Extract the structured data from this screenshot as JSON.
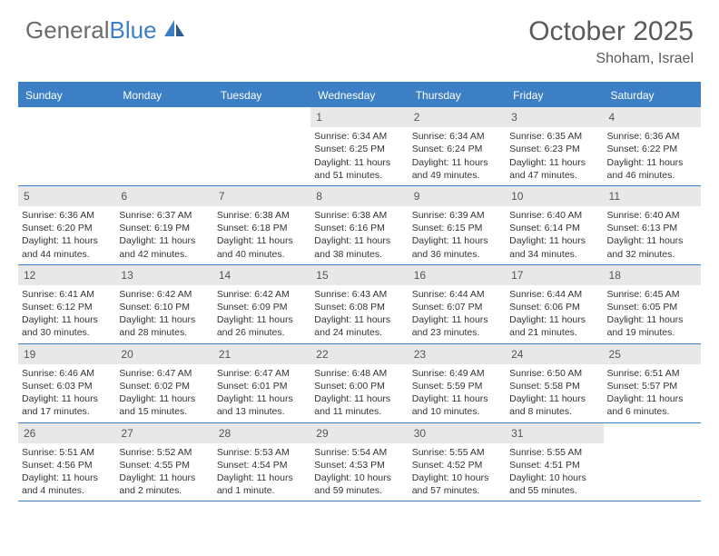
{
  "logo": {
    "word1": "General",
    "word2": "Blue"
  },
  "title": "October 2025",
  "location": "Shoham, Israel",
  "colors": {
    "brand_blue": "#3d7fc4",
    "header_text": "#5a5a5a",
    "logo_gray": "#6b6b6b",
    "daynum_bg": "#e8e8e8",
    "body_text": "#333333",
    "white": "#ffffff"
  },
  "typography": {
    "title_fontsize": 30,
    "location_fontsize": 16,
    "dayheader_fontsize": 12,
    "daynum_fontsize": 12,
    "cell_fontsize": 10.5
  },
  "day_names": [
    "Sunday",
    "Monday",
    "Tuesday",
    "Wednesday",
    "Thursday",
    "Friday",
    "Saturday"
  ],
  "weeks": [
    [
      {
        "empty": true
      },
      {
        "empty": true
      },
      {
        "empty": true
      },
      {
        "num": "1",
        "sunrise": "Sunrise: 6:34 AM",
        "sunset": "Sunset: 6:25 PM",
        "day1": "Daylight: 11 hours",
        "day2": "and 51 minutes."
      },
      {
        "num": "2",
        "sunrise": "Sunrise: 6:34 AM",
        "sunset": "Sunset: 6:24 PM",
        "day1": "Daylight: 11 hours",
        "day2": "and 49 minutes."
      },
      {
        "num": "3",
        "sunrise": "Sunrise: 6:35 AM",
        "sunset": "Sunset: 6:23 PM",
        "day1": "Daylight: 11 hours",
        "day2": "and 47 minutes."
      },
      {
        "num": "4",
        "sunrise": "Sunrise: 6:36 AM",
        "sunset": "Sunset: 6:22 PM",
        "day1": "Daylight: 11 hours",
        "day2": "and 46 minutes."
      }
    ],
    [
      {
        "num": "5",
        "sunrise": "Sunrise: 6:36 AM",
        "sunset": "Sunset: 6:20 PM",
        "day1": "Daylight: 11 hours",
        "day2": "and 44 minutes."
      },
      {
        "num": "6",
        "sunrise": "Sunrise: 6:37 AM",
        "sunset": "Sunset: 6:19 PM",
        "day1": "Daylight: 11 hours",
        "day2": "and 42 minutes."
      },
      {
        "num": "7",
        "sunrise": "Sunrise: 6:38 AM",
        "sunset": "Sunset: 6:18 PM",
        "day1": "Daylight: 11 hours",
        "day2": "and 40 minutes."
      },
      {
        "num": "8",
        "sunrise": "Sunrise: 6:38 AM",
        "sunset": "Sunset: 6:16 PM",
        "day1": "Daylight: 11 hours",
        "day2": "and 38 minutes."
      },
      {
        "num": "9",
        "sunrise": "Sunrise: 6:39 AM",
        "sunset": "Sunset: 6:15 PM",
        "day1": "Daylight: 11 hours",
        "day2": "and 36 minutes."
      },
      {
        "num": "10",
        "sunrise": "Sunrise: 6:40 AM",
        "sunset": "Sunset: 6:14 PM",
        "day1": "Daylight: 11 hours",
        "day2": "and 34 minutes."
      },
      {
        "num": "11",
        "sunrise": "Sunrise: 6:40 AM",
        "sunset": "Sunset: 6:13 PM",
        "day1": "Daylight: 11 hours",
        "day2": "and 32 minutes."
      }
    ],
    [
      {
        "num": "12",
        "sunrise": "Sunrise: 6:41 AM",
        "sunset": "Sunset: 6:12 PM",
        "day1": "Daylight: 11 hours",
        "day2": "and 30 minutes."
      },
      {
        "num": "13",
        "sunrise": "Sunrise: 6:42 AM",
        "sunset": "Sunset: 6:10 PM",
        "day1": "Daylight: 11 hours",
        "day2": "and 28 minutes."
      },
      {
        "num": "14",
        "sunrise": "Sunrise: 6:42 AM",
        "sunset": "Sunset: 6:09 PM",
        "day1": "Daylight: 11 hours",
        "day2": "and 26 minutes."
      },
      {
        "num": "15",
        "sunrise": "Sunrise: 6:43 AM",
        "sunset": "Sunset: 6:08 PM",
        "day1": "Daylight: 11 hours",
        "day2": "and 24 minutes."
      },
      {
        "num": "16",
        "sunrise": "Sunrise: 6:44 AM",
        "sunset": "Sunset: 6:07 PM",
        "day1": "Daylight: 11 hours",
        "day2": "and 23 minutes."
      },
      {
        "num": "17",
        "sunrise": "Sunrise: 6:44 AM",
        "sunset": "Sunset: 6:06 PM",
        "day1": "Daylight: 11 hours",
        "day2": "and 21 minutes."
      },
      {
        "num": "18",
        "sunrise": "Sunrise: 6:45 AM",
        "sunset": "Sunset: 6:05 PM",
        "day1": "Daylight: 11 hours",
        "day2": "and 19 minutes."
      }
    ],
    [
      {
        "num": "19",
        "sunrise": "Sunrise: 6:46 AM",
        "sunset": "Sunset: 6:03 PM",
        "day1": "Daylight: 11 hours",
        "day2": "and 17 minutes."
      },
      {
        "num": "20",
        "sunrise": "Sunrise: 6:47 AM",
        "sunset": "Sunset: 6:02 PM",
        "day1": "Daylight: 11 hours",
        "day2": "and 15 minutes."
      },
      {
        "num": "21",
        "sunrise": "Sunrise: 6:47 AM",
        "sunset": "Sunset: 6:01 PM",
        "day1": "Daylight: 11 hours",
        "day2": "and 13 minutes."
      },
      {
        "num": "22",
        "sunrise": "Sunrise: 6:48 AM",
        "sunset": "Sunset: 6:00 PM",
        "day1": "Daylight: 11 hours",
        "day2": "and 11 minutes."
      },
      {
        "num": "23",
        "sunrise": "Sunrise: 6:49 AM",
        "sunset": "Sunset: 5:59 PM",
        "day1": "Daylight: 11 hours",
        "day2": "and 10 minutes."
      },
      {
        "num": "24",
        "sunrise": "Sunrise: 6:50 AM",
        "sunset": "Sunset: 5:58 PM",
        "day1": "Daylight: 11 hours",
        "day2": "and 8 minutes."
      },
      {
        "num": "25",
        "sunrise": "Sunrise: 6:51 AM",
        "sunset": "Sunset: 5:57 PM",
        "day1": "Daylight: 11 hours",
        "day2": "and 6 minutes."
      }
    ],
    [
      {
        "num": "26",
        "sunrise": "Sunrise: 5:51 AM",
        "sunset": "Sunset: 4:56 PM",
        "day1": "Daylight: 11 hours",
        "day2": "and 4 minutes."
      },
      {
        "num": "27",
        "sunrise": "Sunrise: 5:52 AM",
        "sunset": "Sunset: 4:55 PM",
        "day1": "Daylight: 11 hours",
        "day2": "and 2 minutes."
      },
      {
        "num": "28",
        "sunrise": "Sunrise: 5:53 AM",
        "sunset": "Sunset: 4:54 PM",
        "day1": "Daylight: 11 hours",
        "day2": "and 1 minute."
      },
      {
        "num": "29",
        "sunrise": "Sunrise: 5:54 AM",
        "sunset": "Sunset: 4:53 PM",
        "day1": "Daylight: 10 hours",
        "day2": "and 59 minutes."
      },
      {
        "num": "30",
        "sunrise": "Sunrise: 5:55 AM",
        "sunset": "Sunset: 4:52 PM",
        "day1": "Daylight: 10 hours",
        "day2": "and 57 minutes."
      },
      {
        "num": "31",
        "sunrise": "Sunrise: 5:55 AM",
        "sunset": "Sunset: 4:51 PM",
        "day1": "Daylight: 10 hours",
        "day2": "and 55 minutes."
      },
      {
        "empty": true
      }
    ]
  ]
}
